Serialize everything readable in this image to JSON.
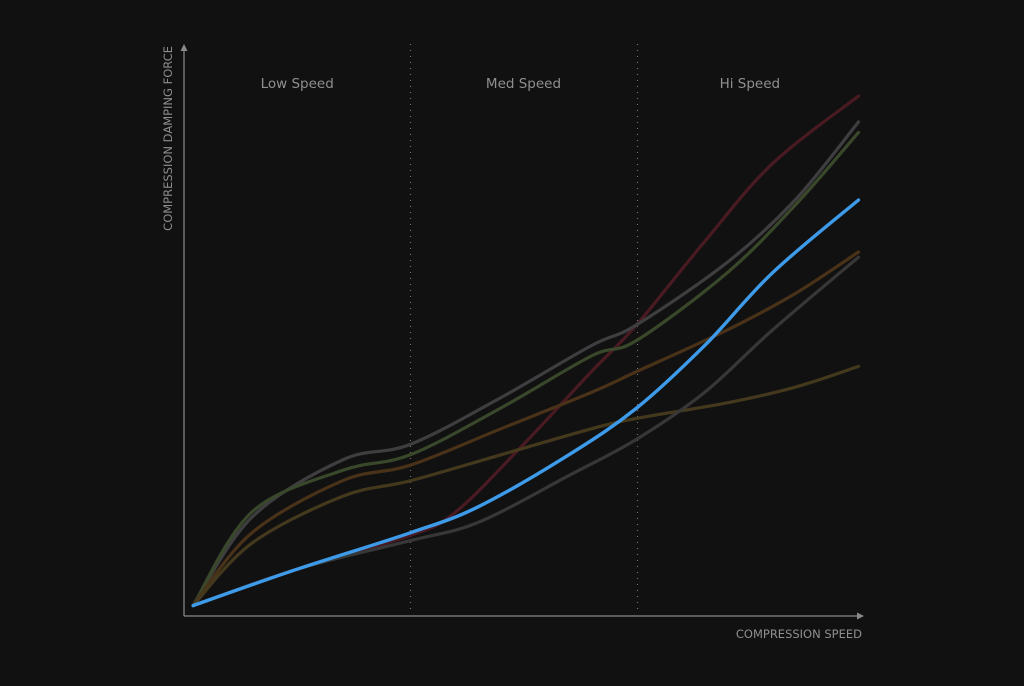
{
  "colors": {
    "background": "#111112",
    "axis": "#8a8a8a",
    "label": "#8f8f8f",
    "highlight": "#3d9be9"
  },
  "chart_data": {
    "type": "line",
    "xlabel": "COMPRESSION SPEED",
    "ylabel": "COMPRESSION DAMPING FORCE",
    "xlim": [
      0,
      3
    ],
    "ylim": [
      0,
      1
    ],
    "grid": false,
    "legend": "none",
    "regions": [
      {
        "label": "Low Speed",
        "start": 0,
        "end": 1
      },
      {
        "label": "Med Speed",
        "start": 1,
        "end": 2
      },
      {
        "label": "Hi Speed",
        "start": 2,
        "end": 3
      }
    ],
    "series": [
      {
        "color": "#4a1a22",
        "highlight": false,
        "points": [
          [
            0.04,
            0.02
          ],
          [
            0.5,
            0.09
          ],
          [
            1.0,
            0.155
          ],
          [
            1.2,
            0.2
          ],
          [
            1.5,
            0.33
          ],
          [
            1.8,
            0.47
          ],
          [
            2.0,
            0.56
          ],
          [
            2.3,
            0.72
          ],
          [
            2.6,
            0.87
          ],
          [
            2.98,
            1.0
          ]
        ]
      },
      {
        "color": "#3e3e40",
        "highlight": false,
        "points": [
          [
            0.04,
            0.02
          ],
          [
            0.3,
            0.19
          ],
          [
            0.7,
            0.3
          ],
          [
            1.0,
            0.33
          ],
          [
            1.4,
            0.42
          ],
          [
            1.8,
            0.52
          ],
          [
            2.0,
            0.56
          ],
          [
            2.4,
            0.68
          ],
          [
            2.7,
            0.8
          ],
          [
            2.98,
            0.95
          ]
        ]
      },
      {
        "color": "#39482a",
        "highlight": false,
        "points": [
          [
            0.04,
            0.02
          ],
          [
            0.3,
            0.2
          ],
          [
            0.7,
            0.28
          ],
          [
            1.0,
            0.31
          ],
          [
            1.4,
            0.4
          ],
          [
            1.8,
            0.5
          ],
          [
            2.0,
            0.53
          ],
          [
            2.4,
            0.66
          ],
          [
            2.7,
            0.79
          ],
          [
            2.98,
            0.93
          ]
        ]
      },
      {
        "color": "#4a3218",
        "highlight": false,
        "points": [
          [
            0.04,
            0.02
          ],
          [
            0.3,
            0.16
          ],
          [
            0.7,
            0.26
          ],
          [
            1.0,
            0.29
          ],
          [
            1.4,
            0.36
          ],
          [
            1.8,
            0.43
          ],
          [
            2.0,
            0.47
          ],
          [
            2.4,
            0.55
          ],
          [
            2.7,
            0.62
          ],
          [
            2.98,
            0.7
          ]
        ]
      },
      {
        "color": "#44391d",
        "highlight": false,
        "points": [
          [
            0.04,
            0.02
          ],
          [
            0.3,
            0.14
          ],
          [
            0.7,
            0.23
          ],
          [
            1.0,
            0.26
          ],
          [
            1.4,
            0.31
          ],
          [
            1.8,
            0.36
          ],
          [
            2.0,
            0.38
          ],
          [
            2.4,
            0.41
          ],
          [
            2.7,
            0.44
          ],
          [
            2.98,
            0.48
          ]
        ]
      },
      {
        "color": "#373737",
        "highlight": false,
        "points": [
          [
            0.04,
            0.02
          ],
          [
            0.5,
            0.09
          ],
          [
            1.0,
            0.145
          ],
          [
            1.3,
            0.18
          ],
          [
            1.7,
            0.27
          ],
          [
            2.0,
            0.34
          ],
          [
            2.3,
            0.43
          ],
          [
            2.6,
            0.55
          ],
          [
            2.98,
            0.69
          ]
        ]
      },
      {
        "color": "#3d9be9",
        "highlight": true,
        "points": [
          [
            0.04,
            0.02
          ],
          [
            0.5,
            0.09
          ],
          [
            1.0,
            0.16
          ],
          [
            1.3,
            0.21
          ],
          [
            1.7,
            0.31
          ],
          [
            2.0,
            0.4
          ],
          [
            2.3,
            0.52
          ],
          [
            2.6,
            0.66
          ],
          [
            2.98,
            0.8
          ]
        ]
      }
    ]
  }
}
